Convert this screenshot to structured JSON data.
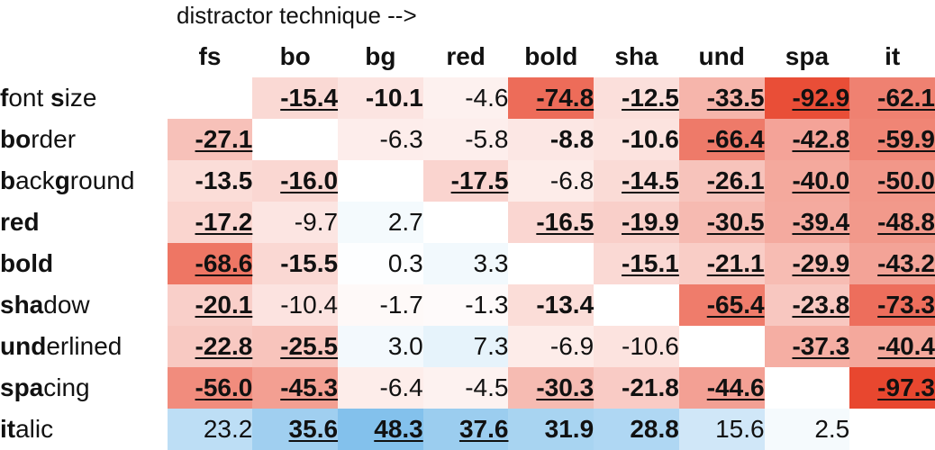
{
  "caption": "distractor technique -->",
  "chart_data": {
    "type": "heatmap",
    "columns": [
      "fs",
      "bo",
      "bg",
      "red",
      "bold",
      "sha",
      "und",
      "spa",
      "it"
    ],
    "rows": [
      {
        "bold_part": "f",
        "rest": "ont ",
        "bold_part2": "s",
        "rest2": "ize"
      },
      {
        "bold_part": "bo",
        "rest": "rder"
      },
      {
        "bold_part": "b",
        "rest": "ack",
        "bold_part2": "g",
        "rest2": "round"
      },
      {
        "bold_part": "red",
        "rest": ""
      },
      {
        "bold_part": "bold",
        "rest": ""
      },
      {
        "bold_part": "sha",
        "rest": "dow"
      },
      {
        "bold_part": "und",
        "rest": "erlined"
      },
      {
        "bold_part": "spa",
        "rest": "cing"
      },
      {
        "bold_part": "it",
        "rest": "alic"
      }
    ],
    "row_labels": [
      "font size",
      "border",
      "background",
      "red",
      "bold",
      "shadow",
      "underlined",
      "spacing",
      "italic"
    ],
    "values": [
      [
        null,
        -15.4,
        -10.1,
        -4.6,
        -74.8,
        -12.5,
        -33.5,
        -92.9,
        -62.1
      ],
      [
        -27.1,
        null,
        -6.3,
        -5.8,
        -8.8,
        -10.6,
        -66.4,
        -42.8,
        -59.9
      ],
      [
        -13.5,
        -16.0,
        null,
        -17.5,
        -6.8,
        -14.5,
        -26.1,
        -40.0,
        -50.0
      ],
      [
        -17.2,
        -9.7,
        2.7,
        null,
        -16.5,
        -19.9,
        -30.5,
        -39.4,
        -48.8
      ],
      [
        -68.6,
        -15.5,
        0.3,
        3.3,
        null,
        -15.1,
        -21.1,
        -29.9,
        -43.2
      ],
      [
        -20.1,
        -10.4,
        -1.7,
        -1.3,
        -13.4,
        null,
        -65.4,
        -23.8,
        -73.3
      ],
      [
        -22.8,
        -25.5,
        3.0,
        7.3,
        -6.9,
        -10.6,
        null,
        -37.3,
        -40.4
      ],
      [
        -56.0,
        -45.3,
        -6.4,
        -4.5,
        -30.3,
        -21.8,
        -44.6,
        null,
        -97.3
      ],
      [
        23.2,
        35.6,
        48.3,
        37.6,
        31.9,
        28.8,
        15.6,
        2.5,
        null
      ]
    ],
    "bold": [
      [
        false,
        true,
        true,
        false,
        true,
        true,
        true,
        true,
        true
      ],
      [
        true,
        false,
        false,
        false,
        true,
        true,
        true,
        true,
        true
      ],
      [
        true,
        true,
        false,
        true,
        false,
        true,
        true,
        true,
        true
      ],
      [
        true,
        false,
        false,
        false,
        true,
        true,
        true,
        true,
        true
      ],
      [
        true,
        true,
        false,
        false,
        false,
        true,
        true,
        true,
        true
      ],
      [
        true,
        false,
        false,
        false,
        true,
        false,
        true,
        true,
        true
      ],
      [
        true,
        true,
        false,
        false,
        false,
        false,
        false,
        true,
        true
      ],
      [
        true,
        true,
        false,
        false,
        true,
        true,
        true,
        false,
        true
      ],
      [
        false,
        true,
        true,
        true,
        true,
        true,
        false,
        false,
        false
      ]
    ],
    "underlined": [
      [
        false,
        true,
        false,
        false,
        true,
        true,
        true,
        true,
        true
      ],
      [
        true,
        false,
        false,
        false,
        false,
        false,
        true,
        true,
        true
      ],
      [
        false,
        true,
        false,
        true,
        false,
        true,
        true,
        true,
        true
      ],
      [
        true,
        false,
        false,
        false,
        true,
        true,
        true,
        true,
        true
      ],
      [
        true,
        false,
        false,
        false,
        false,
        true,
        true,
        true,
        true
      ],
      [
        true,
        false,
        false,
        false,
        false,
        false,
        true,
        true,
        true
      ],
      [
        true,
        true,
        false,
        false,
        false,
        false,
        false,
        true,
        true
      ],
      [
        true,
        true,
        false,
        false,
        true,
        false,
        true,
        false,
        true
      ],
      [
        false,
        true,
        true,
        true,
        false,
        false,
        false,
        false,
        false
      ]
    ],
    "color_scale": {
      "negative": "#e8472f",
      "positive": "#1f8fdc",
      "neutral": "#ffffff",
      "max_abs": 97.3
    }
  }
}
